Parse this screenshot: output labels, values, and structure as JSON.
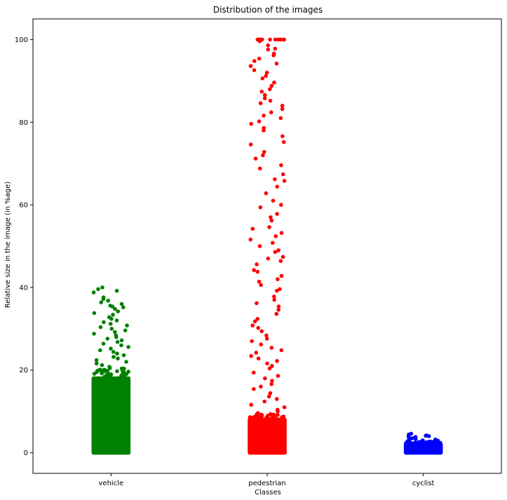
{
  "chart_data": {
    "type": "scatter",
    "subtype": "strip",
    "title": "Distribution of the images",
    "xlabel": "Classes",
    "ylabel": "Relative size in the image (in %age)",
    "categories": [
      "vehicle",
      "pedestrian",
      "cyclist"
    ],
    "ylim": [
      -5,
      105
    ],
    "yticks": [
      0,
      20,
      40,
      60,
      80,
      100
    ],
    "grid": false,
    "legend": "none",
    "series": [
      {
        "category": "vehicle",
        "color": "#008000",
        "dense_band": [
          0,
          18
        ],
        "points": [
          40,
          39.6,
          39.2,
          38.8,
          37.6,
          37.2,
          36.8,
          36.4,
          36,
          35.6,
          35.4,
          35.2,
          34.8,
          34.2,
          33.8,
          33.4,
          32.8,
          32.4,
          32,
          31.6,
          31.2,
          30.8,
          30.4,
          30,
          29.6,
          29.2,
          28.8,
          28.4,
          28,
          27.6,
          27.2,
          26.8,
          26.4,
          26,
          25.6,
          25.2,
          24.8,
          24.4,
          24,
          23.6,
          23.2,
          22.8,
          22.4,
          22,
          21.6,
          21.2,
          20.8,
          20.4,
          20,
          19.6,
          19.2,
          18.8,
          18.4
        ]
      },
      {
        "category": "pedestrian",
        "color": "#ff0000",
        "dense_band": [
          0,
          8
        ],
        "points": [
          100,
          100,
          100,
          100,
          100,
          100,
          100,
          100,
          100,
          100,
          100,
          99.6,
          98.6,
          97.8,
          97.6,
          96.6,
          96.2,
          95.4,
          94.8,
          94.2,
          93.6,
          92.6,
          92,
          91.2,
          90.6,
          89.6,
          88.8,
          88,
          87.4,
          86.6,
          85.8,
          85.2,
          84.6,
          84,
          83.2,
          82.4,
          81.6,
          81,
          80.2,
          79.6,
          78.6,
          78,
          76.6,
          75.2,
          74.6,
          72.8,
          72,
          71.2,
          69.6,
          68.8,
          67.4,
          66.2,
          65.8,
          64.4,
          62.8,
          61,
          60,
          59.4,
          57.8,
          57,
          56.2,
          54.6,
          54.2,
          53.2,
          52.4,
          51.6,
          50.8,
          50,
          49,
          48.6,
          47.4,
          47,
          46.4,
          45.6,
          44.2,
          43.8,
          42.8,
          42,
          41.4,
          40.6,
          39.6,
          39.2,
          37.8,
          37,
          36.2,
          35.4,
          34.6,
          33.6,
          32.4,
          31.8,
          30.8,
          30.2,
          29.4,
          28.4,
          27.6,
          27,
          26.2,
          25.4,
          24.8,
          24.2,
          23.4,
          22.8,
          22.2,
          21.6,
          21,
          20.4,
          19.4,
          18.6,
          18,
          17.4,
          16.6,
          16,
          15.4,
          14.4,
          13.6,
          13,
          12.4,
          11.6,
          11,
          10.4,
          10,
          9.6,
          9.2,
          8.8,
          8.4
        ]
      },
      {
        "category": "cyclist",
        "color": "#0000ff",
        "dense_band": [
          0,
          2
        ],
        "points": [
          4.6,
          4.4,
          4.2,
          4.1,
          4,
          3.9,
          3.8,
          3.7,
          3.6,
          3.5,
          3.4,
          3.3,
          3.2,
          3.1,
          3,
          2.9,
          2.8,
          2.7,
          2.6,
          2.5,
          2.4,
          2.3,
          2.2,
          2.1
        ]
      }
    ]
  }
}
